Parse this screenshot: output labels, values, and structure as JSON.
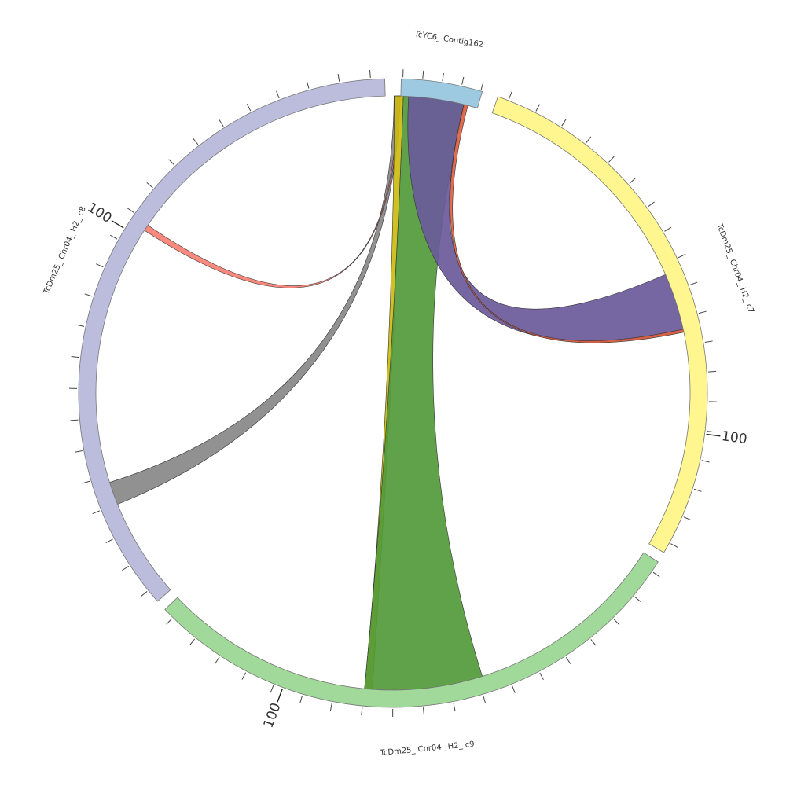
{
  "chart_data": {
    "type": "chord",
    "segments": [
      {
        "id": "contig162",
        "label": "TcYC6_ Contig162",
        "color": "#9ecae1",
        "start_deg": 1.5,
        "end_deg": 16.5,
        "minor_ticks": 4,
        "major_tick": null
      },
      {
        "id": "c7",
        "label": "TcDm25_ Chr04_ H2_ c7",
        "color": "#fff68f",
        "start_deg": 19.5,
        "end_deg": 120.5,
        "minor_ticks": 18,
        "major_tick": {
          "label": "100",
          "deg": 97.5
        }
      },
      {
        "id": "c9",
        "label": "TcDm25_ Chr04_ H2_ c9",
        "color": "#a1d99b",
        "start_deg": 122.5,
        "end_deg": 226.5,
        "minor_ticks": 18,
        "major_tick": {
          "label": "100",
          "deg": 200.5
        }
      },
      {
        "id": "c8",
        "label": "TcDm25_ Chr04_ H2_ c8",
        "color": "#bcbddc",
        "start_deg": 228.5,
        "end_deg": 358.5,
        "minor_ticks": 22,
        "major_tick": {
          "label": "100",
          "deg": 301.5
        }
      }
    ],
    "links": [
      {
        "color": "#888888",
        "src": [
          0.2,
          1.4
        ],
        "dst": [
          248.0,
          252.5
        ]
      },
      {
        "color": "#fa8072",
        "src": [
          0.9,
          1.2
        ],
        "dst": [
          303.2,
          304.4
        ]
      },
      {
        "color": "#ccbb11",
        "src": [
          0.3,
          2.0
        ],
        "dst": [
          184.0,
          185.5
        ]
      },
      {
        "color": "#529a3a",
        "src": [
          2.0,
          14.0
        ],
        "dst": [
          162.5,
          185.5
        ]
      },
      {
        "color": "#6a5a9a",
        "src": [
          3.0,
          13.8
        ],
        "dst": [
          66.5,
          78.0
        ]
      },
      {
        "color": "#e06040",
        "src": [
          13.8,
          14.6
        ],
        "dst": [
          77.6,
          78.2
        ]
      }
    ]
  }
}
